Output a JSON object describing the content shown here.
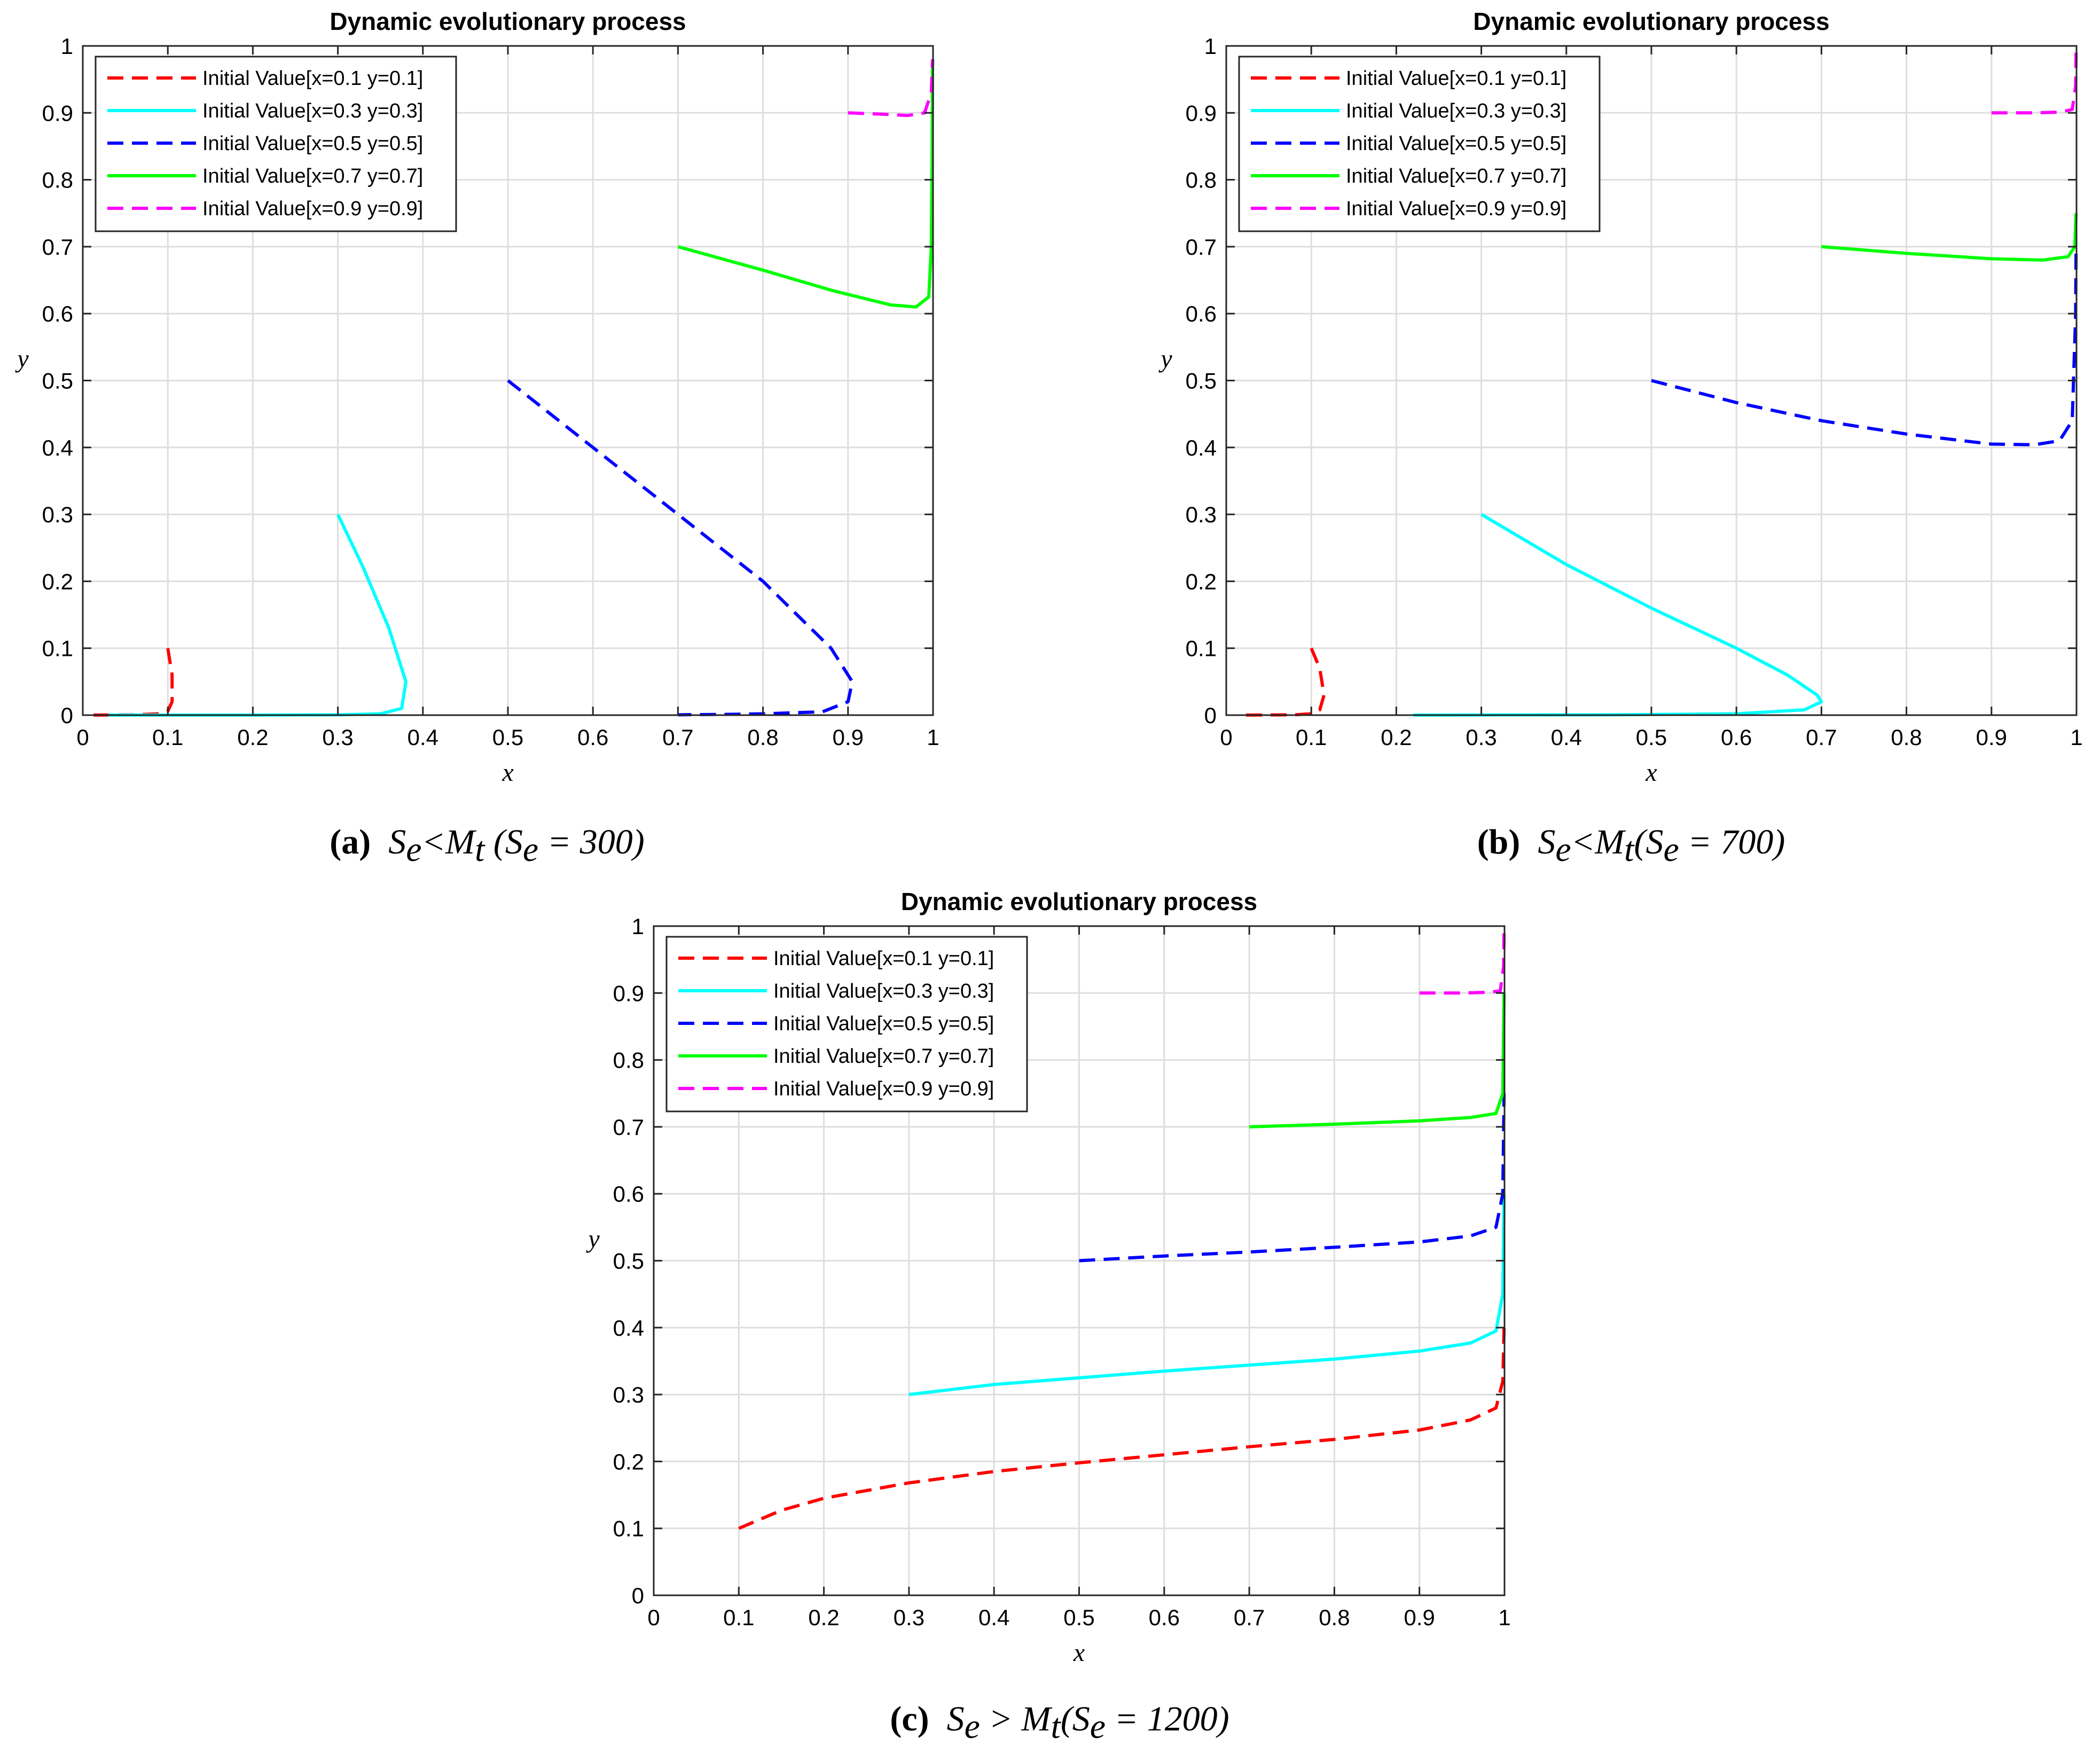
{
  "chart_data": [
    {
      "type": "line",
      "title": "Dynamic evolutionary process",
      "xlabel": "x",
      "ylabel": "y",
      "xlim": [
        0,
        1
      ],
      "ylim": [
        0,
        1
      ],
      "grid": true,
      "legend_position": "top-left",
      "xticks": [
        "0",
        "0.1",
        "0.2",
        "0.3",
        "0.4",
        "0.5",
        "0.6",
        "0.7",
        "0.8",
        "0.9",
        "1"
      ],
      "yticks": [
        "0",
        "0.1",
        "0.2",
        "0.3",
        "0.4",
        "0.5",
        "0.6",
        "0.7",
        "0.8",
        "0.9",
        "1"
      ],
      "caption": {
        "label": "(a)",
        "text": "S_e<M_t (S_e = 300)",
        "parts": [
          "S",
          "e",
          "<M",
          "t",
          " (S",
          "e",
          " = 300)"
        ]
      },
      "series": [
        {
          "name": "Initial Value[x=0.1 y=0.1]",
          "color": "#ff0000",
          "dash": "dashed",
          "x": [
            0.1,
            0.105,
            0.105,
            0.1,
            0.09,
            0.06,
            0.03,
            0.01
          ],
          "y": [
            0.1,
            0.06,
            0.02,
            0.006,
            0.002,
            0.0005,
            0.0002,
            0.0001
          ]
        },
        {
          "name": "Initial Value[x=0.3 y=0.3]",
          "color": "#00ffff",
          "dash": "solid",
          "x": [
            0.3,
            0.33,
            0.36,
            0.38,
            0.375,
            0.35,
            0.3,
            0.2,
            0.1,
            0.03
          ],
          "y": [
            0.3,
            0.22,
            0.13,
            0.05,
            0.01,
            0.002,
            0.0005,
            0.0001,
            0.0001,
            0.0001
          ]
        },
        {
          "name": "Initial Value[x=0.5 y=0.5]",
          "color": "#0000ff",
          "dash": "dashed",
          "x": [
            0.5,
            0.6,
            0.7,
            0.8,
            0.88,
            0.905,
            0.9,
            0.87,
            0.8,
            0.75,
            0.7
          ],
          "y": [
            0.5,
            0.4,
            0.3,
            0.2,
            0.1,
            0.05,
            0.02,
            0.005,
            0.002,
            0.001,
            0.0005
          ]
        },
        {
          "name": "Initial Value[x=0.7 y=0.7]",
          "color": "#00ff00",
          "dash": "solid",
          "x": [
            0.7,
            0.8,
            0.88,
            0.95,
            0.98,
            0.995,
            0.998,
            0.999,
            0.9995
          ],
          "y": [
            0.7,
            0.665,
            0.635,
            0.613,
            0.61,
            0.625,
            0.7,
            0.85,
            0.98
          ]
        },
        {
          "name": "Initial Value[x=0.9 y=0.9]",
          "color": "#ff00ff",
          "dash": "dashed",
          "x": [
            0.9,
            0.94,
            0.97,
            0.99,
            0.998,
            0.9995
          ],
          "y": [
            0.9,
            0.898,
            0.896,
            0.9,
            0.93,
            0.98
          ]
        }
      ]
    },
    {
      "type": "line",
      "title": "Dynamic evolutionary process",
      "xlabel": "x",
      "ylabel": "y",
      "xlim": [
        0,
        1
      ],
      "ylim": [
        0,
        1
      ],
      "grid": true,
      "legend_position": "top-left",
      "xticks": [
        "0",
        "0.1",
        "0.2",
        "0.3",
        "0.4",
        "0.5",
        "0.6",
        "0.7",
        "0.8",
        "0.9",
        "1"
      ],
      "yticks": [
        "0",
        "0.1",
        "0.2",
        "0.3",
        "0.4",
        "0.5",
        "0.6",
        "0.7",
        "0.8",
        "0.9",
        "1"
      ],
      "caption": {
        "label": "(b)",
        "text": "S_e<M_t(S_e = 700)",
        "parts": [
          "S",
          "e",
          "<M",
          "t",
          "(S",
          "e",
          " = 700)"
        ]
      },
      "series": [
        {
          "name": "Initial Value[x=0.1 y=0.1]",
          "color": "#ff0000",
          "dash": "dashed",
          "x": [
            0.1,
            0.11,
            0.115,
            0.11,
            0.1,
            0.08,
            0.05,
            0.02
          ],
          "y": [
            0.1,
            0.07,
            0.03,
            0.008,
            0.002,
            0.0005,
            0.0002,
            0.0001
          ]
        },
        {
          "name": "Initial Value[x=0.3 y=0.3]",
          "color": "#00ffff",
          "dash": "solid",
          "x": [
            0.3,
            0.4,
            0.5,
            0.6,
            0.66,
            0.695,
            0.7,
            0.68,
            0.6,
            0.45,
            0.3,
            0.22
          ],
          "y": [
            0.3,
            0.225,
            0.16,
            0.1,
            0.06,
            0.03,
            0.02,
            0.008,
            0.002,
            0.0005,
            0.0002,
            0.0001
          ]
        },
        {
          "name": "Initial Value[x=0.5 y=0.5]",
          "color": "#0000ff",
          "dash": "dashed",
          "x": [
            0.5,
            0.6,
            0.7,
            0.8,
            0.9,
            0.95,
            0.98,
            0.995,
            0.999,
            0.9995
          ],
          "y": [
            0.5,
            0.467,
            0.44,
            0.42,
            0.405,
            0.404,
            0.41,
            0.44,
            0.6,
            0.7
          ]
        },
        {
          "name": "Initial Value[x=0.7 y=0.7]",
          "color": "#00ff00",
          "dash": "solid",
          "x": [
            0.7,
            0.8,
            0.9,
            0.96,
            0.99,
            0.998,
            0.9995
          ],
          "y": [
            0.7,
            0.69,
            0.682,
            0.68,
            0.685,
            0.7,
            0.75
          ]
        },
        {
          "name": "Initial Value[x=0.9 y=0.9]",
          "color": "#ff00ff",
          "dash": "dashed",
          "x": [
            0.9,
            0.95,
            0.98,
            0.995,
            0.999,
            0.9995
          ],
          "y": [
            0.9,
            0.9,
            0.901,
            0.905,
            0.94,
            0.99
          ]
        }
      ]
    },
    {
      "type": "line",
      "title": "Dynamic evolutionary process",
      "xlabel": "x",
      "ylabel": "y",
      "xlim": [
        0,
        1
      ],
      "ylim": [
        0,
        1
      ],
      "grid": true,
      "legend_position": "top-left",
      "xticks": [
        "0",
        "0.1",
        "0.2",
        "0.3",
        "0.4",
        "0.5",
        "0.6",
        "0.7",
        "0.8",
        "0.9",
        "1"
      ],
      "yticks": [
        "0",
        "0.1",
        "0.2",
        "0.3",
        "0.4",
        "0.5",
        "0.6",
        "0.7",
        "0.8",
        "0.9",
        "1"
      ],
      "caption": {
        "label": "(c)",
        "text": "S_e > M_t(S_e = 1200)",
        "parts": [
          "S",
          "e",
          " > M",
          "t",
          "(S",
          "e",
          " = 1200)"
        ]
      },
      "series": [
        {
          "name": "Initial Value[x=0.1 y=0.1]",
          "color": "#ff0000",
          "dash": "dashed",
          "x": [
            0.1,
            0.15,
            0.2,
            0.3,
            0.4,
            0.5,
            0.6,
            0.7,
            0.8,
            0.9,
            0.96,
            0.99,
            0.998,
            0.9995
          ],
          "y": [
            0.1,
            0.127,
            0.145,
            0.168,
            0.185,
            0.198,
            0.21,
            0.222,
            0.233,
            0.247,
            0.262,
            0.28,
            0.32,
            0.4
          ]
        },
        {
          "name": "Initial Value[x=0.3 y=0.3]",
          "color": "#00ffff",
          "dash": "solid",
          "x": [
            0.3,
            0.4,
            0.5,
            0.6,
            0.7,
            0.8,
            0.9,
            0.96,
            0.99,
            0.998,
            0.9995
          ],
          "y": [
            0.3,
            0.315,
            0.325,
            0.335,
            0.344,
            0.353,
            0.365,
            0.377,
            0.395,
            0.45,
            0.6
          ]
        },
        {
          "name": "Initial Value[x=0.5 y=0.5]",
          "color": "#0000ff",
          "dash": "dashed",
          "x": [
            0.5,
            0.6,
            0.7,
            0.8,
            0.9,
            0.96,
            0.99,
            0.998,
            0.9995
          ],
          "y": [
            0.5,
            0.507,
            0.513,
            0.52,
            0.528,
            0.537,
            0.55,
            0.6,
            0.75
          ]
        },
        {
          "name": "Initial Value[x=0.7 y=0.7]",
          "color": "#00ff00",
          "dash": "solid",
          "x": [
            0.7,
            0.8,
            0.9,
            0.96,
            0.99,
            0.998,
            0.9995
          ],
          "y": [
            0.7,
            0.704,
            0.709,
            0.714,
            0.72,
            0.75,
            0.9
          ]
        },
        {
          "name": "Initial Value[x=0.9 y=0.9]",
          "color": "#ff00ff",
          "dash": "dashed",
          "x": [
            0.9,
            0.95,
            0.98,
            0.995,
            0.999,
            0.9995
          ],
          "y": [
            0.9,
            0.9,
            0.901,
            0.903,
            0.94,
            0.99
          ]
        }
      ]
    }
  ]
}
